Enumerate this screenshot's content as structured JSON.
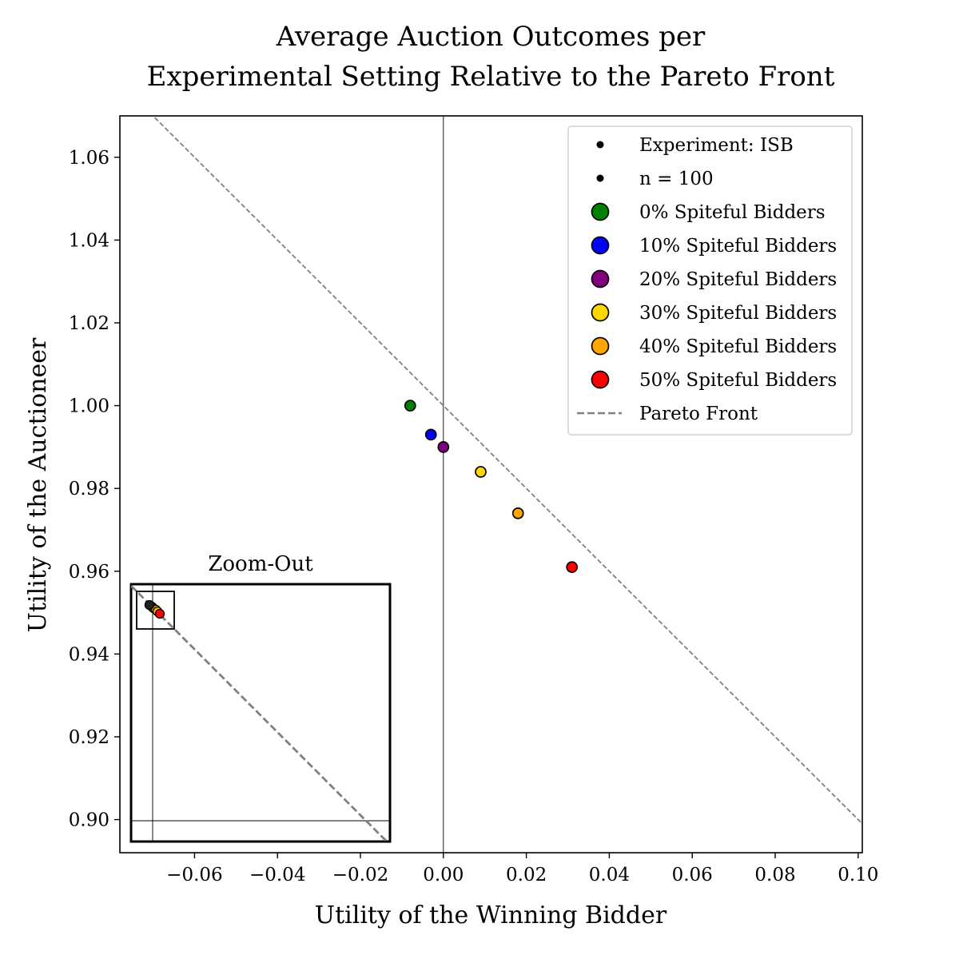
{
  "chart_data": {
    "type": "scatter",
    "title_lines": [
      "Average Auction Outcomes per",
      "Experimental Setting Relative to the Pareto Front"
    ],
    "xlabel": "Utility of the Winning Bidder",
    "ylabel": "Utility of the Auctioneer",
    "xlim": [
      -0.078,
      0.101
    ],
    "ylim": [
      0.892,
      1.07
    ],
    "xticks": [
      -0.06,
      -0.04,
      -0.02,
      0.0,
      0.02,
      0.04,
      0.06,
      0.08,
      0.1
    ],
    "xtick_labels": [
      "−0.06",
      "−0.04",
      "−0.02",
      "0.00",
      "0.02",
      "0.04",
      "0.06",
      "0.08",
      "0.10"
    ],
    "yticks": [
      0.9,
      0.92,
      0.94,
      0.96,
      0.98,
      1.0,
      1.02,
      1.04,
      1.06
    ],
    "ytick_labels": [
      "0.90",
      "0.92",
      "0.94",
      "0.96",
      "0.98",
      "1.00",
      "1.02",
      "1.04",
      "1.06"
    ],
    "grid": false,
    "legend_position": "top-right",
    "legend_header": [
      "Experiment: ISB",
      "n = 100"
    ],
    "series": [
      {
        "name": "0% Spiteful Bidders",
        "color": "#008000",
        "x": -0.008,
        "y": 1.0
      },
      {
        "name": "10% Spiteful Bidders",
        "color": "#0000ff",
        "x": -0.003,
        "y": 0.993
      },
      {
        "name": "20% Spiteful Bidders",
        "color": "#800080",
        "x": 0.0,
        "y": 0.99
      },
      {
        "name": "30% Spiteful Bidders",
        "color": "#ffd700",
        "x": 0.009,
        "y": 0.984
      },
      {
        "name": "40% Spiteful Bidders",
        "color": "#ffa500",
        "x": 0.018,
        "y": 0.974
      },
      {
        "name": "50% Spiteful Bidders",
        "color": "#ff0000",
        "x": 0.031,
        "y": 0.961
      }
    ],
    "pareto_front": {
      "name": "Pareto Front",
      "color": "#808080",
      "style": "dashed",
      "x_plus_y": 1.0
    },
    "reference_line_x": 0.0,
    "inset": {
      "title": "Zoom-Out"
    }
  }
}
